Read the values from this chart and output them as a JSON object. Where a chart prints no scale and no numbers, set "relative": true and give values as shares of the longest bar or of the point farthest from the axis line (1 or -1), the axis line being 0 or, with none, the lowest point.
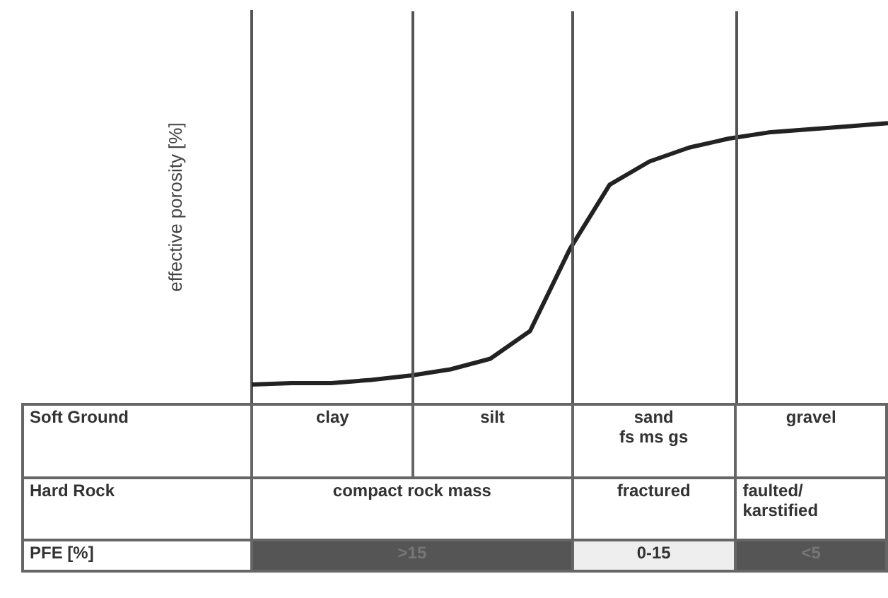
{
  "chart_data": {
    "type": "line",
    "relative": true,
    "ylabel": "effective porosity [%]",
    "marker": "none",
    "line_style": "solid",
    "categories": [
      null,
      null,
      null,
      null,
      null,
      null,
      null,
      null,
      null,
      null,
      null,
      null,
      null,
      null,
      null,
      null,
      null
    ],
    "series": [
      {
        "color": "#222222",
        "values": [
          0.066,
          0.071,
          0.071,
          0.082,
          0.098,
          0.12,
          0.158,
          0.257,
          0.55,
          0.78,
          0.863,
          0.913,
          0.945,
          0.967,
          0.978,
          0.989,
          1
        ]
      }
    ],
    "annotations": [
      "Soft Ground",
      "clay",
      "silt",
      "sand",
      "fs  ms  gs",
      "gravel",
      "Hard Rock",
      "compact rock mass",
      "fractured",
      "faulted/ karstified",
      "PFE [%]",
      ">15",
      "0-15",
      "<5"
    ]
  }
}
